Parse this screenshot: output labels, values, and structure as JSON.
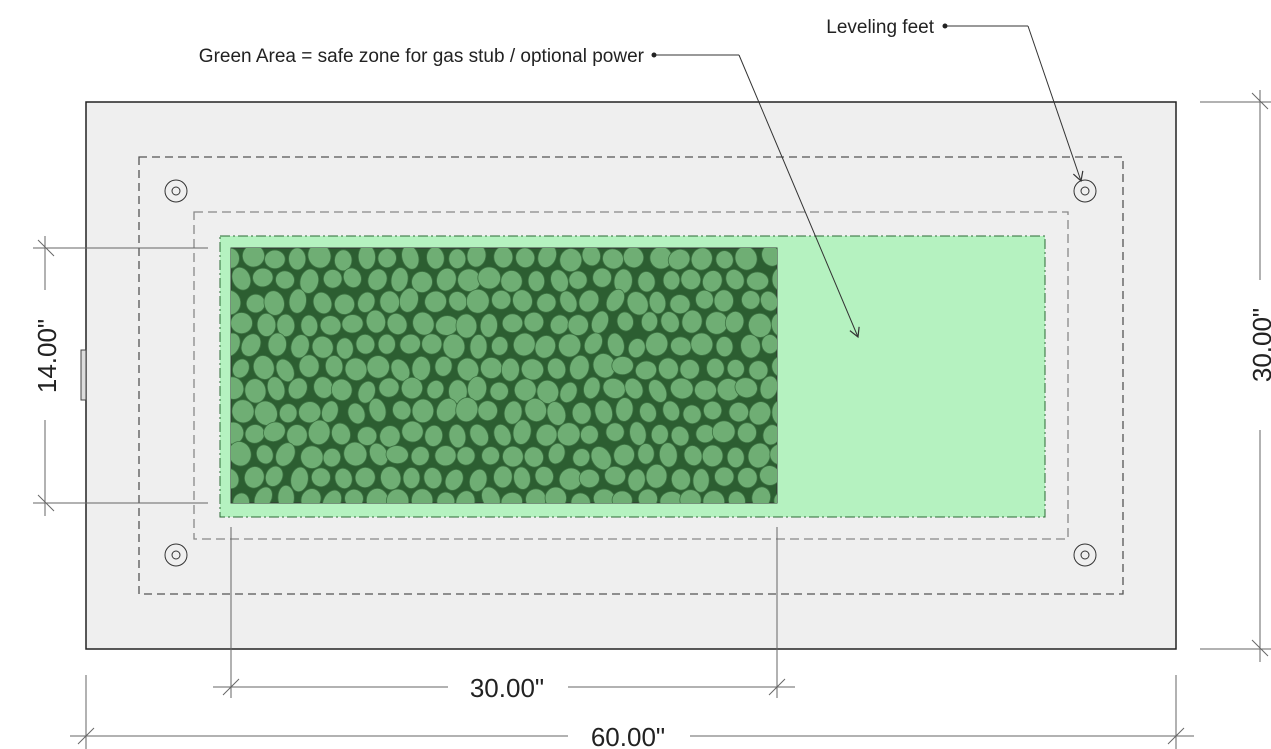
{
  "callouts": {
    "green_area": "Green Area = safe zone for gas stub / optional power",
    "leveling_feet": "Leveling feet"
  },
  "dimensions": {
    "burner_height": "14.00\"",
    "table_depth": "30.00\"",
    "burner_length": "30.00\"",
    "table_length": "60.00\""
  },
  "colors": {
    "table_fill": "#efefef",
    "table_stroke": "#222222",
    "safe_zone": "#b5f2c0",
    "pebble_fill": "#6fae74",
    "pebble_gap": "#2c5e31",
    "dashed_line": "#555555",
    "dim_line": "#666666"
  }
}
